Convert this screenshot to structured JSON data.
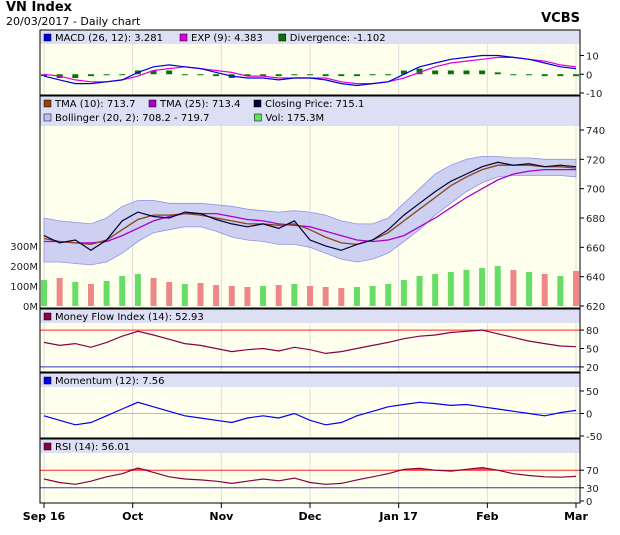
{
  "header": {
    "title": "VN Index",
    "subtitle": "20/03/2017 - Daily chart",
    "broker": "VCBS"
  },
  "x_labels": [
    "Sep 16",
    "Oct",
    "Nov",
    "Dec",
    "Jan 17",
    "Feb",
    "Mar"
  ],
  "colors": {
    "plot_bg": "#ffffee",
    "legend_bg": "#dde0f5",
    "macd": "#0000dd",
    "exp": "#dd00dd",
    "divergence": "#007700",
    "tma10": "#8b4513",
    "tma25": "#aa00cc",
    "close": "#000033",
    "bollinger": "#bcc0f2",
    "vol_up": "#66dd66",
    "vol_down": "#ee8888",
    "mfi": "#880044",
    "momentum": "#0000ee",
    "rsi": "#880044",
    "overbought": "#ff2222"
  },
  "chart_data": [
    {
      "type": "line",
      "panel": "macd",
      "legend": [
        "MACD (26, 12): 3.281",
        "EXP (9): 4.383",
        "Divergence: -1.102"
      ],
      "ylim": [
        -10,
        14
      ],
      "yticks": [
        10,
        0,
        -10
      ],
      "series": [
        {
          "name": "MACD (26, 12)",
          "values": [
            -1,
            -3,
            -5,
            -5,
            -4,
            -3,
            1,
            4,
            5,
            4,
            3,
            1,
            -1,
            -2,
            -2,
            -3,
            -2,
            -2,
            -3,
            -5,
            -6,
            -5,
            -4,
            0,
            4,
            6,
            8,
            9,
            10,
            10,
            9,
            8,
            6,
            4,
            3
          ]
        },
        {
          "name": "EXP (9)",
          "values": [
            0,
            -1,
            -3,
            -4,
            -4,
            -3,
            -1,
            2,
            3,
            4,
            3,
            2,
            1,
            -1,
            -1,
            -2,
            -2,
            -2,
            -2,
            -4,
            -5,
            -5,
            -4,
            -2,
            1,
            4,
            6,
            7,
            8,
            9,
            9,
            8,
            7,
            5,
            4
          ]
        },
        {
          "name": "Divergence",
          "values": [
            -1,
            -2,
            -2,
            -1,
            0,
            0,
            2,
            2,
            2,
            0,
            0,
            -1,
            -2,
            -1,
            -1,
            -1,
            0,
            0,
            -1,
            -1,
            -1,
            0,
            0,
            2,
            3,
            2,
            2,
            2,
            2,
            1,
            0,
            0,
            -1,
            -1,
            -1
          ]
        }
      ]
    },
    {
      "type": "line",
      "panel": "price",
      "legend": [
        "TMA (10): 713.7",
        "TMA (25): 713.4",
        "Closing Price: 715.1",
        "Bollinger (20, 2): 708.2 - 719.7",
        "Vol: 175.3M"
      ],
      "ylim": [
        620,
        740
      ],
      "yticks": [
        740,
        720,
        700,
        680,
        660,
        640,
        620
      ],
      "vol_ticks": [
        "300M",
        "200M",
        "100M",
        "0M"
      ],
      "series": [
        {
          "name": "Closing Price",
          "values": [
            668,
            663,
            665,
            658,
            665,
            678,
            684,
            681,
            680,
            684,
            683,
            679,
            676,
            674,
            676,
            673,
            678,
            665,
            661,
            658,
            662,
            665,
            672,
            682,
            690,
            698,
            705,
            710,
            715,
            718,
            716,
            717,
            715,
            716,
            715
          ]
        },
        {
          "name": "TMA (10)",
          "values": [
            666,
            664,
            663,
            662,
            665,
            672,
            679,
            682,
            682,
            683,
            682,
            680,
            678,
            676,
            676,
            675,
            676,
            672,
            667,
            663,
            662,
            665,
            670,
            678,
            686,
            694,
            702,
            708,
            713,
            716,
            716,
            716,
            715,
            715,
            714
          ]
        },
        {
          "name": "TMA (25)",
          "values": [
            664,
            664,
            663,
            663,
            664,
            668,
            673,
            678,
            681,
            683,
            683,
            683,
            681,
            679,
            678,
            676,
            675,
            674,
            671,
            668,
            665,
            664,
            665,
            668,
            674,
            680,
            687,
            694,
            700,
            706,
            710,
            712,
            713,
            713,
            713
          ]
        },
        {
          "name": "Bollinger upper",
          "values": [
            680,
            678,
            677,
            676,
            680,
            688,
            692,
            692,
            690,
            690,
            690,
            689,
            688,
            686,
            685,
            684,
            685,
            684,
            682,
            678,
            676,
            676,
            680,
            690,
            700,
            710,
            716,
            720,
            722,
            722,
            721,
            721,
            720,
            720,
            720
          ]
        },
        {
          "name": "Bollinger lower",
          "values": [
            650,
            650,
            649,
            648,
            650,
            656,
            664,
            670,
            672,
            674,
            674,
            671,
            667,
            665,
            664,
            662,
            662,
            660,
            656,
            652,
            650,
            652,
            656,
            664,
            672,
            682,
            690,
            698,
            704,
            708,
            709,
            709,
            709,
            709,
            708
          ]
        },
        {
          "name": "Vol",
          "values": [
            130,
            140,
            120,
            110,
            125,
            150,
            160,
            140,
            120,
            110,
            115,
            105,
            100,
            95,
            100,
            105,
            110,
            100,
            95,
            90,
            95,
            100,
            110,
            130,
            150,
            160,
            170,
            180,
            190,
            200,
            180,
            170,
            160,
            150,
            175
          ]
        }
      ]
    },
    {
      "type": "line",
      "panel": "mfi",
      "legend": [
        "Money Flow Index (14): 52.93"
      ],
      "ylim": [
        15,
        85
      ],
      "yticks": [
        80,
        50,
        20
      ],
      "series": [
        {
          "name": "Money Flow Index (14)",
          "values": [
            60,
            55,
            58,
            52,
            60,
            70,
            78,
            72,
            65,
            58,
            55,
            50,
            45,
            48,
            50,
            46,
            52,
            48,
            42,
            45,
            50,
            55,
            60,
            66,
            70,
            72,
            76,
            78,
            80,
            74,
            68,
            62,
            58,
            54,
            53
          ]
        }
      ]
    },
    {
      "type": "line",
      "panel": "momentum",
      "legend": [
        "Momentum (12): 7.56"
      ],
      "ylim": [
        -50,
        50
      ],
      "yticks": [
        50,
        0,
        -50
      ],
      "series": [
        {
          "name": "Momentum (12)",
          "values": [
            -5,
            -15,
            -25,
            -20,
            -5,
            10,
            25,
            15,
            5,
            -5,
            -10,
            -15,
            -20,
            -10,
            -5,
            -10,
            0,
            -15,
            -25,
            -20,
            -5,
            5,
            15,
            20,
            25,
            22,
            18,
            20,
            15,
            10,
            5,
            0,
            -5,
            2,
            7
          ]
        }
      ]
    },
    {
      "type": "line",
      "panel": "rsi",
      "legend": [
        "RSI (14): 56.01"
      ],
      "ylim": [
        0,
        100
      ],
      "yticks": [
        70,
        30,
        0
      ],
      "series": [
        {
          "name": "RSI (14)",
          "values": [
            50,
            42,
            38,
            45,
            55,
            62,
            75,
            65,
            55,
            50,
            48,
            45,
            40,
            45,
            50,
            46,
            52,
            42,
            38,
            40,
            48,
            55,
            62,
            72,
            74,
            70,
            68,
            72,
            76,
            70,
            62,
            58,
            55,
            54,
            56
          ]
        }
      ]
    }
  ]
}
